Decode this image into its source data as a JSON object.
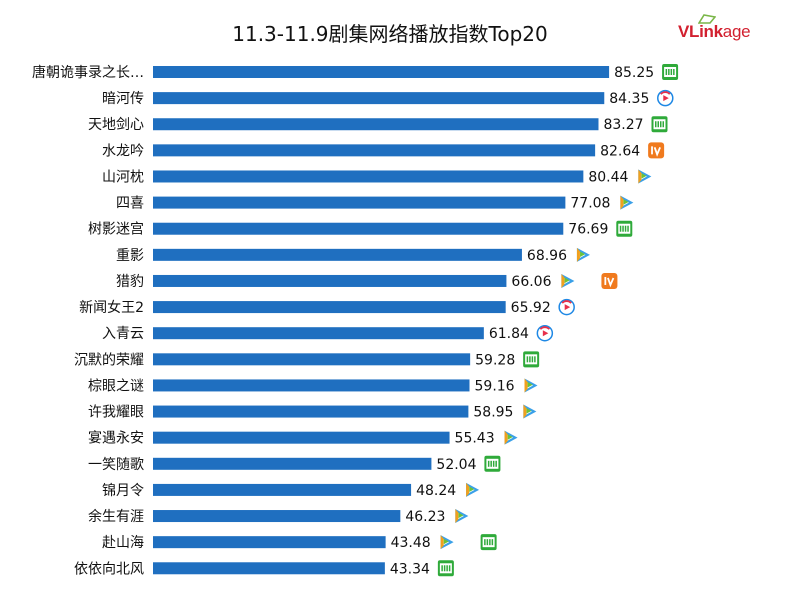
{
  "chart_data": {
    "type": "bar",
    "orientation": "horizontal",
    "title": "11.3-11.9剧集网络播放指数Top20",
    "categories": [
      "唐朝诡事录之长…",
      "暗河传",
      "天地剑心",
      "水龙吟",
      "山河枕",
      "四喜",
      "树影迷宫",
      "重影",
      "猎豹",
      "新闻女王2",
      "入青云",
      "沉默的荣耀",
      "棕眼之谜",
      "许我耀眼",
      "宴遇永安",
      "一笑随歌",
      "锦月令",
      "余生有涯",
      "赴山海",
      "依依向北风"
    ],
    "values": [
      85.25,
      84.35,
      83.27,
      82.64,
      80.44,
      77.08,
      76.69,
      68.96,
      66.06,
      65.92,
      61.84,
      59.28,
      59.16,
      58.95,
      55.43,
      52.04,
      48.24,
      46.23,
      43.48,
      43.34
    ],
    "value_labels": [
      "85.25",
      "84.35",
      "83.27",
      "82.64",
      "80.44",
      "77.08",
      "76.69",
      "68.96",
      "66.06",
      "65.92",
      "61.84",
      "59.28",
      "59.16",
      "58.95",
      "55.43",
      "52.04",
      "48.24",
      "46.23",
      "43.48",
      "43.34"
    ],
    "platforms": [
      [
        "iqiyi-icon"
      ],
      [
        "youku-icon"
      ],
      [
        "iqiyi-icon"
      ],
      [
        "mangotv-icon"
      ],
      [
        "tencent-video-icon"
      ],
      [
        "tencent-video-icon"
      ],
      [
        "iqiyi-icon"
      ],
      [
        "tencent-video-icon"
      ],
      [
        "tencent-video-icon",
        "mangotv-icon"
      ],
      [
        "youku-icon"
      ],
      [
        "youku-icon"
      ],
      [
        "iqiyi-icon"
      ],
      [
        "tencent-video-icon"
      ],
      [
        "tencent-video-icon"
      ],
      [
        "tencent-video-icon"
      ],
      [
        "iqiyi-icon"
      ],
      [
        "tencent-video-icon"
      ],
      [
        "tencent-video-icon"
      ],
      [
        "tencent-video-icon",
        "iqiyi-icon"
      ],
      [
        "iqiyi-icon"
      ]
    ],
    "xlim": [
      0,
      100
    ],
    "grid": false,
    "legend": "none",
    "bar_color": "#1f6fc0",
    "platform_colors": {
      "iqiyi-icon": "#2faa3a",
      "youku-icon": "#1e88e5",
      "mangotv-icon": "#f07a1e",
      "tencent-video-icon": "#3aa0e8"
    }
  },
  "logo": {
    "brand_v": "V",
    "brand_main": "Link",
    "brand_age": "age"
  }
}
